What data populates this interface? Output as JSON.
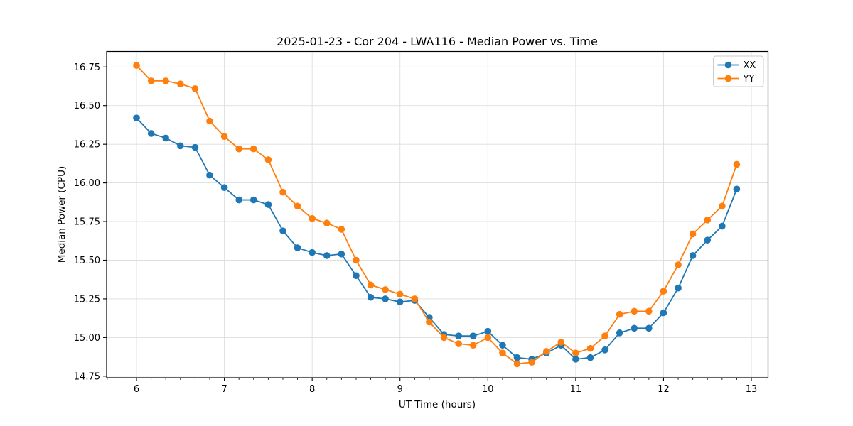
{
  "chart_data": {
    "type": "line",
    "title": "2025-01-23 - Cor 204 - LWA116 - Median Power vs. Time",
    "xlabel": "UT Time (hours)",
    "ylabel": "Median Power (CPU)",
    "xlim": [
      5.66,
      13.19
    ],
    "ylim": [
      14.74,
      16.85
    ],
    "x_major_ticks": [
      6,
      7,
      8,
      9,
      10,
      11,
      12,
      13
    ],
    "x_minor_tick_step": 0.166667,
    "y_ticks": [
      14.75,
      15.0,
      15.25,
      15.5,
      15.75,
      16.0,
      16.25,
      16.5,
      16.75
    ],
    "y_tick_decimals": 2,
    "grid": true,
    "grid_color": "#dedede",
    "spine_color": "#000000",
    "legend": {
      "position": "upper-right",
      "entries": [
        "XX",
        "YY"
      ]
    },
    "x": [
      6.0,
      6.167,
      6.333,
      6.5,
      6.667,
      6.833,
      7.0,
      7.167,
      7.333,
      7.5,
      7.667,
      7.833,
      8.0,
      8.167,
      8.333,
      8.5,
      8.667,
      8.833,
      9.0,
      9.167,
      9.333,
      9.5,
      9.667,
      9.833,
      10.0,
      10.167,
      10.333,
      10.5,
      10.667,
      10.833,
      11.0,
      11.167,
      11.333,
      11.5,
      11.667,
      11.833,
      12.0,
      12.167,
      12.333,
      12.5,
      12.667,
      12.833
    ],
    "series": [
      {
        "name": "XX",
        "color": "#1f77b4",
        "values": [
          16.42,
          16.32,
          16.29,
          16.24,
          16.23,
          16.05,
          15.97,
          15.89,
          15.89,
          15.86,
          15.69,
          15.58,
          15.55,
          15.53,
          15.54,
          15.4,
          15.26,
          15.25,
          15.23,
          15.24,
          15.13,
          15.02,
          15.01,
          15.01,
          15.04,
          14.95,
          14.87,
          14.86,
          14.9,
          14.95,
          14.86,
          14.87,
          14.92,
          15.03,
          15.06,
          15.06,
          15.16,
          15.32,
          15.53,
          15.63,
          15.72,
          15.96
        ]
      },
      {
        "name": "YY",
        "color": "#ff7f0e",
        "values": [
          16.76,
          16.66,
          16.66,
          16.64,
          16.61,
          16.4,
          16.3,
          16.22,
          16.22,
          16.15,
          15.94,
          15.85,
          15.77,
          15.74,
          15.7,
          15.5,
          15.34,
          15.31,
          15.28,
          15.25,
          15.1,
          15.0,
          14.96,
          14.95,
          15.0,
          14.9,
          14.83,
          14.84,
          14.91,
          14.97,
          14.9,
          14.93,
          15.01,
          15.15,
          15.17,
          15.17,
          15.3,
          15.47,
          15.67,
          15.76,
          15.85,
          16.12
        ]
      }
    ]
  }
}
